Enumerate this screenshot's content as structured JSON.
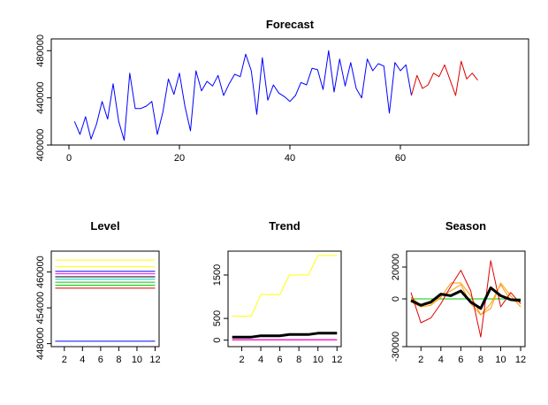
{
  "colors": {
    "forecast_history": "#0000ff",
    "forecast_future": "#dd0000",
    "axis": "#000000"
  },
  "chart_data": [
    {
      "id": "forecast",
      "type": "line",
      "title": "Forecast",
      "xlabel": "",
      "ylabel": "",
      "xlim": [
        0,
        80
      ],
      "ylim": [
        400000,
        490000
      ],
      "xticks": [
        0,
        20,
        40,
        60
      ],
      "yticks": [
        400000,
        440000,
        480000
      ],
      "grid": false,
      "series": [
        {
          "color": "#0000ff",
          "x": [
            1,
            2,
            3,
            4,
            5,
            6,
            7,
            8,
            9,
            10,
            11,
            12,
            13,
            14,
            15,
            16,
            17,
            18,
            19,
            20,
            21,
            22,
            23,
            24,
            25,
            26,
            27,
            28,
            29,
            30,
            31,
            32,
            33,
            34,
            35,
            36,
            37,
            38,
            39,
            40,
            41,
            42,
            43,
            44,
            45,
            46,
            47,
            48,
            49,
            50,
            51,
            52,
            53,
            54,
            55,
            56,
            57,
            58,
            59,
            60,
            61,
            62
          ],
          "y": [
            420000,
            409000,
            424000,
            405000,
            418000,
            437000,
            422000,
            452000,
            420000,
            404000,
            461000,
            431000,
            431000,
            433000,
            437000,
            409000,
            428000,
            456000,
            443000,
            461000,
            433000,
            412000,
            463000,
            446000,
            454000,
            450000,
            459000,
            442000,
            452000,
            460000,
            458000,
            477000,
            463000,
            426000,
            474000,
            438000,
            451000,
            444000,
            441000,
            437000,
            442000,
            453000,
            451000,
            465000,
            464000,
            447000,
            480000,
            445000,
            473000,
            450000,
            470000,
            448000,
            440000,
            473000,
            463000,
            469000,
            467000,
            427000,
            470000,
            463000,
            468000,
            442000
          ]
        },
        {
          "color": "#dd0000",
          "x": [
            62,
            63,
            64,
            65,
            66,
            67,
            68,
            69,
            70,
            71,
            72,
            73,
            74
          ],
          "y": [
            442000,
            459000,
            448000,
            451000,
            461000,
            458000,
            468000,
            455000,
            442000,
            471000,
            456000,
            461000,
            455000
          ]
        }
      ]
    },
    {
      "id": "level",
      "type": "line",
      "title": "Level",
      "xlim": [
        1,
        12
      ],
      "ylim": [
        447500,
        463500
      ],
      "xticks": [
        2,
        4,
        6,
        8,
        10,
        12
      ],
      "yticks": [
        448000,
        454000,
        460000
      ],
      "grid": false,
      "series": [
        {
          "color": "#ffff00",
          "y": [
            462000,
            462000,
            462000,
            462000,
            462000,
            462000,
            462000,
            462000,
            462000,
            462000,
            462000,
            462000
          ]
        },
        {
          "color": "#ffff00",
          "y": [
            460900,
            460900,
            460900,
            460900,
            460900,
            460900,
            460900,
            460900,
            460900,
            460900,
            460900,
            460900
          ]
        },
        {
          "color": "#0000ff",
          "y": [
            460100,
            460100,
            460100,
            460100,
            460100,
            460100,
            460100,
            460100,
            460100,
            460100,
            460100,
            460100
          ]
        },
        {
          "color": "#ff00ff",
          "y": [
            459700,
            459700,
            459700,
            459700,
            459700,
            459700,
            459700,
            459700,
            459700,
            459700,
            459700,
            459700
          ]
        },
        {
          "color": "#000000",
          "y": [
            459200,
            459200,
            459200,
            459200,
            459200,
            459200,
            459200,
            459200,
            459200,
            459200,
            459200,
            459200
          ]
        },
        {
          "color": "#00cccc",
          "y": [
            458800,
            458800,
            458800,
            458800,
            458800,
            458800,
            458800,
            458800,
            458800,
            458800,
            458800,
            458800
          ]
        },
        {
          "color": "#00cc00",
          "y": [
            458300,
            458300,
            458300,
            458300,
            458300,
            458300,
            458300,
            458300,
            458300,
            458300,
            458300,
            458300
          ]
        },
        {
          "color": "#00cc00",
          "y": [
            457800,
            457800,
            457800,
            457800,
            457800,
            457800,
            457800,
            457800,
            457800,
            457800,
            457800,
            457800
          ]
        },
        {
          "color": "#dd0000",
          "y": [
            457300,
            457300,
            457300,
            457300,
            457300,
            457300,
            457300,
            457300,
            457300,
            457300,
            457300,
            457300
          ]
        },
        {
          "color": "#0000ff",
          "y": [
            448400,
            448400,
            448400,
            448400,
            448400,
            448400,
            448400,
            448400,
            448400,
            448400,
            448400,
            448400
          ]
        }
      ]
    },
    {
      "id": "trend",
      "type": "line",
      "title": "Trend",
      "xlim": [
        1,
        12
      ],
      "ylim": [
        -150,
        2050
      ],
      "xticks": [
        2,
        4,
        6,
        8,
        10,
        12
      ],
      "yticks": [
        0,
        500,
        1500
      ],
      "grid": false,
      "series": [
        {
          "color": "#ffff00",
          "width": 1,
          "y": [
            550,
            550,
            550,
            1050,
            1050,
            1050,
            1500,
            1500,
            1500,
            1950,
            1950,
            1950
          ]
        },
        {
          "color": "#000000",
          "width": 3,
          "y": [
            70,
            70,
            70,
            100,
            100,
            100,
            130,
            130,
            130,
            160,
            160,
            160
          ]
        },
        {
          "color": "#ff0000",
          "width": 1,
          "y": [
            5,
            5,
            5,
            5,
            5,
            5,
            5,
            5,
            5,
            5,
            5,
            5
          ]
        },
        {
          "color": "#ff00ff",
          "width": 1,
          "y": [
            10,
            10,
            10,
            10,
            10,
            10,
            10,
            10,
            10,
            10,
            10,
            10
          ]
        }
      ]
    },
    {
      "id": "season",
      "type": "line",
      "title": "Season",
      "xlim": [
        1,
        12
      ],
      "ylim": [
        -30000,
        30000
      ],
      "xticks": [
        2,
        4,
        6,
        8,
        10,
        12
      ],
      "yticks": [
        -30000,
        0,
        20000
      ],
      "grid": false,
      "series": [
        {
          "color": "#00cc00",
          "width": 1,
          "y": [
            0,
            0,
            0,
            0,
            0,
            0,
            0,
            0,
            0,
            0,
            0,
            0
          ]
        },
        {
          "color": "#ff9900",
          "width": 1,
          "y": [
            -2000,
            -5000,
            -4000,
            1000,
            10000,
            10000,
            2000,
            -10000,
            -6000,
            10000,
            2000,
            -5000
          ]
        },
        {
          "color": "#ff9900",
          "width": 1,
          "y": [
            1000,
            -4000,
            -3000,
            2000,
            5000,
            9000,
            -3000,
            -10000,
            -3000,
            9000,
            -1000,
            -2000
          ]
        },
        {
          "color": "#dd0000",
          "width": 1,
          "y": [
            4000,
            -15000,
            -12000,
            -3000,
            8000,
            18000,
            5000,
            -24000,
            24000,
            -5000,
            4000,
            -3000
          ]
        },
        {
          "color": "#000000",
          "width": 3,
          "y": [
            -1000,
            -4000,
            -2000,
            3000,
            2000,
            5000,
            -2000,
            -6000,
            7000,
            2000,
            -500,
            -1000
          ]
        }
      ]
    }
  ]
}
